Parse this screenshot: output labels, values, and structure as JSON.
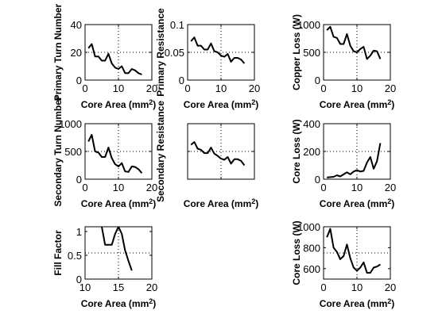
{
  "chart_data": [
    {
      "id": "primary-turn-number",
      "type": "line",
      "xlabel": "Core Area (mm²)",
      "ylabel": "Primary Turn Number",
      "xlim": [
        0,
        20
      ],
      "ylim": [
        0,
        40
      ],
      "xticks": [
        "0",
        "10",
        "20"
      ],
      "yticks": [
        "0",
        "20",
        "40"
      ],
      "grid": "dotted-center",
      "x": [
        1,
        2,
        3,
        4,
        5,
        6,
        7,
        8,
        9,
        10,
        11,
        12,
        13,
        14,
        15,
        16,
        17
      ],
      "y": [
        23,
        26,
        17,
        17,
        14,
        14,
        19,
        12,
        9,
        8,
        10,
        5,
        5,
        8,
        7,
        5,
        4
      ]
    },
    {
      "id": "primary-resistance",
      "type": "line",
      "xlabel": "Core Area (mm²)",
      "ylabel": "Primary Resistance",
      "xlim": [
        0,
        20
      ],
      "ylim": [
        0,
        0.1
      ],
      "xticks": [
        "0",
        "10",
        "20"
      ],
      "yticks": [
        "0",
        "0.05",
        "0.1"
      ],
      "grid": "dotted-center",
      "x": [
        1,
        2,
        3,
        4,
        5,
        6,
        7,
        8,
        9,
        10,
        11,
        12,
        13,
        14,
        15,
        16,
        17
      ],
      "y": [
        0.07,
        0.077,
        0.062,
        0.062,
        0.055,
        0.055,
        0.066,
        0.052,
        0.05,
        0.044,
        0.042,
        0.047,
        0.033,
        0.04,
        0.04,
        0.037,
        0.03
      ]
    },
    {
      "id": "copper-loss",
      "type": "line",
      "xlabel": "Core Area (mm²)",
      "ylabel": "Copper Loss (W)",
      "xlim": [
        0,
        20
      ],
      "ylim": [
        0,
        1000
      ],
      "xticks": [
        "0",
        "10",
        "20"
      ],
      "yticks": [
        "0",
        "500",
        "1000"
      ],
      "grid": "dotted-center",
      "x": [
        1,
        2,
        3,
        4,
        5,
        6,
        7,
        8,
        9,
        10,
        11,
        12,
        13,
        14,
        15,
        16,
        17
      ],
      "y": [
        900,
        960,
        780,
        760,
        650,
        650,
        830,
        620,
        520,
        500,
        560,
        600,
        380,
        440,
        530,
        520,
        380
      ]
    },
    {
      "id": "secondary-turn-number",
      "type": "line",
      "xlabel": "Core Area (mm²)",
      "ylabel": "Secondary Turn Number",
      "xlim": [
        0,
        20
      ],
      "ylim": [
        0,
        1000
      ],
      "xticks": [
        "0",
        "10",
        "20"
      ],
      "yticks": [
        "0",
        "500",
        "1000"
      ],
      "grid": "dotted-center",
      "x": [
        1,
        2,
        3,
        4,
        5,
        6,
        7,
        8,
        9,
        10,
        11,
        12,
        13,
        14,
        15,
        16,
        17
      ],
      "y": [
        680,
        800,
        500,
        480,
        400,
        400,
        570,
        380,
        270,
        230,
        290,
        140,
        130,
        230,
        220,
        180,
        110
      ]
    },
    {
      "id": "secondary-resistance",
      "type": "line",
      "xlabel": "Core Area (mm²)",
      "ylabel": "Secondary Resistance",
      "xlim": [
        0,
        20
      ],
      "ylim": [
        0,
        0.1
      ],
      "xticks": [],
      "yticks": [],
      "grid": "dotted-center",
      "x": [
        1,
        2,
        3,
        4,
        5,
        6,
        7,
        8,
        9,
        10,
        11,
        12,
        13,
        14,
        15,
        16,
        17
      ],
      "y": [
        0.062,
        0.067,
        0.055,
        0.053,
        0.047,
        0.047,
        0.057,
        0.046,
        0.042,
        0.037,
        0.035,
        0.04,
        0.028,
        0.036,
        0.036,
        0.033,
        0.025
      ]
    },
    {
      "id": "core-loss-1",
      "type": "line",
      "xlabel": "Core Area (mm²)",
      "ylabel": "Core Loss (W)",
      "xlim": [
        0,
        20
      ],
      "ylim": [
        0,
        400
      ],
      "xticks": [
        "0",
        "10",
        "20"
      ],
      "yticks": [
        "0",
        "200",
        "400"
      ],
      "grid": "dotted-center",
      "x": [
        1,
        2,
        3,
        4,
        5,
        6,
        7,
        8,
        9,
        10,
        11,
        12,
        13,
        14,
        15,
        16,
        17
      ],
      "y": [
        12,
        15,
        17,
        28,
        20,
        35,
        50,
        35,
        55,
        65,
        55,
        60,
        120,
        160,
        75,
        130,
        260
      ]
    },
    {
      "id": "fill-factor",
      "type": "line",
      "xlabel": "Core Area (mm²)",
      "ylabel": "Fill Factor",
      "xlim": [
        10,
        20
      ],
      "ylim": [
        0,
        1.1
      ],
      "xticks": [
        "10",
        "15",
        "20"
      ],
      "yticks": [
        "0",
        "0.5",
        "1"
      ],
      "grid": "dotted-center",
      "x": [
        12,
        12.5,
        13,
        14,
        14.5,
        15,
        15.5,
        16,
        16.5,
        17
      ],
      "y": [
        1.15,
        1.1,
        0.72,
        0.72,
        0.95,
        1.1,
        0.95,
        0.6,
        0.38,
        0.18
      ]
    },
    {
      "id": "core-loss-2",
      "type": "line",
      "xlabel": "Core Area (mm²)",
      "ylabel": "Core Loss (W)",
      "xlim": [
        0,
        20
      ],
      "ylim": [
        500,
        1000
      ],
      "xticks": [
        "0",
        "10",
        "20"
      ],
      "yticks": [
        "600",
        "800",
        "1000"
      ],
      "grid": "dotted-center",
      "x": [
        1,
        2,
        3,
        4,
        5,
        6,
        7,
        8,
        9,
        10,
        11,
        12,
        13,
        14,
        15,
        16,
        17
      ],
      "y": [
        900,
        980,
        800,
        760,
        690,
        720,
        830,
        700,
        610,
        580,
        610,
        660,
        560,
        560,
        610,
        620,
        640
      ]
    }
  ]
}
